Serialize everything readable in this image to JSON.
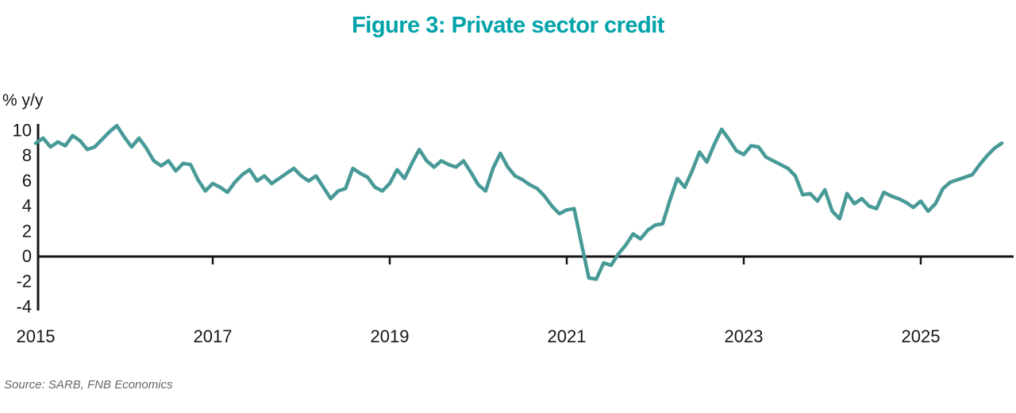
{
  "header": {
    "title": "Figure 3: Private sector credit"
  },
  "footer": {
    "source": "Source: SARB, FNB Economics"
  },
  "colors": {
    "title": "#00a3aa",
    "line": "#489a97",
    "axis": "#161616",
    "source_text": "#666666",
    "background": "#ffffff"
  },
  "chart_data": {
    "type": "line",
    "title": "Figure 3: Private sector credit",
    "xlabel": "",
    "ylabel": "% y/y",
    "legend_position": "none",
    "grid": false,
    "x_start_year": 2015,
    "x_frequency": "monthly",
    "x_tick_years": [
      2015,
      2017,
      2019,
      2021,
      2023,
      2025
    ],
    "y_ticks": [
      10,
      8,
      6,
      4,
      2,
      0,
      -2,
      -4
    ],
    "ylim": [
      -4,
      10.6
    ],
    "series": [
      {
        "name": "Private sector credit growth (% y/y)",
        "start": "2015-01",
        "end": "2025-12",
        "values": [
          9.0,
          9.4,
          8.7,
          9.1,
          8.8,
          9.6,
          9.2,
          8.5,
          8.7,
          9.3,
          9.9,
          10.4,
          9.5,
          8.7,
          9.4,
          8.6,
          7.6,
          7.2,
          7.6,
          6.8,
          7.4,
          7.3,
          6.1,
          5.2,
          5.8,
          5.5,
          5.1,
          5.9,
          6.5,
          6.9,
          6.0,
          6.4,
          5.8,
          6.2,
          6.6,
          7.0,
          6.4,
          6.0,
          6.4,
          5.5,
          4.6,
          5.2,
          5.4,
          7.0,
          6.6,
          6.3,
          5.5,
          5.2,
          5.8,
          6.9,
          6.2,
          7.4,
          8.5,
          7.6,
          7.1,
          7.6,
          7.3,
          7.1,
          7.6,
          6.7,
          5.7,
          5.2,
          7.0,
          8.2,
          7.1,
          6.4,
          6.1,
          5.7,
          5.4,
          4.8,
          4.0,
          3.4,
          3.7,
          3.8,
          1.0,
          -1.7,
          -1.8,
          -0.5,
          -0.7,
          0.2,
          0.9,
          1.8,
          1.4,
          2.1,
          2.5,
          2.6,
          4.5,
          6.2,
          5.5,
          6.8,
          8.3,
          7.5,
          8.9,
          10.1,
          9.3,
          8.4,
          8.1,
          8.8,
          8.7,
          7.9,
          7.6,
          7.3,
          7.0,
          6.4,
          4.9,
          5.0,
          4.4,
          5.3,
          3.6,
          3.0,
          5.0,
          4.2,
          4.6,
          4.0,
          3.8,
          5.1,
          4.8,
          4.6,
          4.3,
          3.9,
          4.4,
          3.6,
          4.2,
          5.4,
          5.9,
          6.1,
          6.3,
          6.5,
          7.3,
          8.0,
          8.6,
          9.0
        ]
      }
    ]
  }
}
